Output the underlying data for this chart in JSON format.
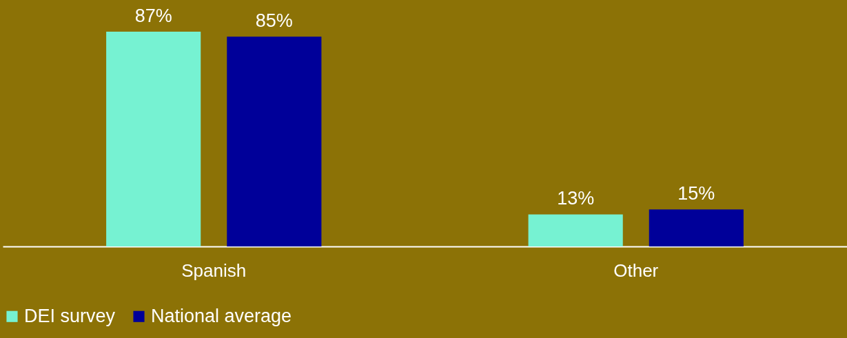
{
  "chart_data": {
    "type": "bar",
    "categories": [
      "Spanish",
      "Other"
    ],
    "series": [
      {
        "name": "DEI survey",
        "color": "#76f2d2",
        "values": [
          87,
          13
        ],
        "value_labels": [
          "87%",
          "13%"
        ]
      },
      {
        "name": "National average",
        "color": "#000099",
        "values": [
          85,
          15
        ],
        "value_labels": [
          "85%",
          "15%"
        ]
      }
    ],
    "tick_labels": "x",
    "legend": "bottom"
  }
}
